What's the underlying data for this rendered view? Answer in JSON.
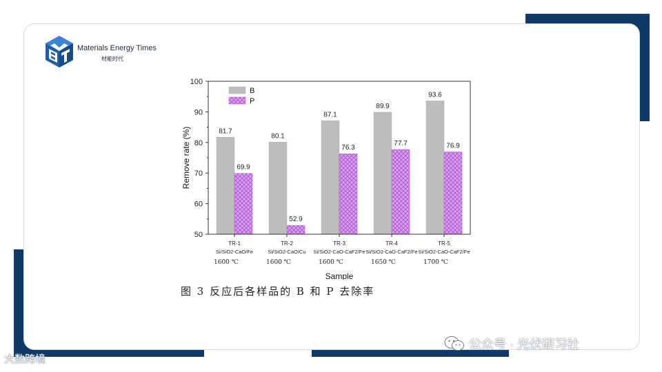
{
  "brand": {
    "name": "Materials Energy Times",
    "subtitle": "材能时代"
  },
  "caption": "图 3  反应后各样品的 B 和 P 去除率",
  "watermark": {
    "left": "大数跨境",
    "right": "公众号 · 光伏研习社"
  },
  "colors": {
    "frame": "#0f3a68",
    "bar_b": "#bdbdbd",
    "bar_p_fill": "#d9a3ea",
    "bar_p_hatch": "#b04fd6"
  },
  "icons": [
    "met-logo-icon",
    "wechat-icon"
  ],
  "chart_data": {
    "type": "bar",
    "categories": [
      "TR-1",
      "TR-2",
      "TR-3",
      "TR-4",
      "TR-5"
    ],
    "category_details": [
      {
        "name": "TR-1",
        "composition": "Si/SiO2-CaO/Fe",
        "temperature": "1600 ℃"
      },
      {
        "name": "TR-2",
        "composition": "Si/SiO2-CaO/Cu",
        "temperature": "1600 ℃"
      },
      {
        "name": "TR-3",
        "composition": "Si/SiO2-CaO-CaF2/Fe",
        "temperature": "1600 ℃"
      },
      {
        "name": "TR-4",
        "composition": "Si/SiO2-CaO-CaF2/Fe",
        "temperature": "1650 ℃"
      },
      {
        "name": "TR-5",
        "composition": "Si/SiO2-CaO-CaF2/Fe",
        "temperature": "1700 ℃"
      }
    ],
    "series": [
      {
        "name": "B",
        "values": [
          81.7,
          80.1,
          87.1,
          89.9,
          93.6
        ]
      },
      {
        "name": "P",
        "values": [
          69.9,
          52.9,
          76.3,
          77.7,
          76.9
        ]
      }
    ],
    "value_labels": {
      "B": [
        "81.7",
        "80.1",
        "87.1",
        "89.9",
        "93.6"
      ],
      "P": [
        "69.9",
        "52.9",
        "76.3",
        "77.7",
        "76.9"
      ]
    },
    "xlabel": "Sample",
    "ylabel": "Remove rate (%)",
    "ylim": [
      50,
      100
    ],
    "yticks": [
      50,
      60,
      70,
      80,
      90,
      100
    ],
    "legend": "top-left",
    "grid": false
  }
}
